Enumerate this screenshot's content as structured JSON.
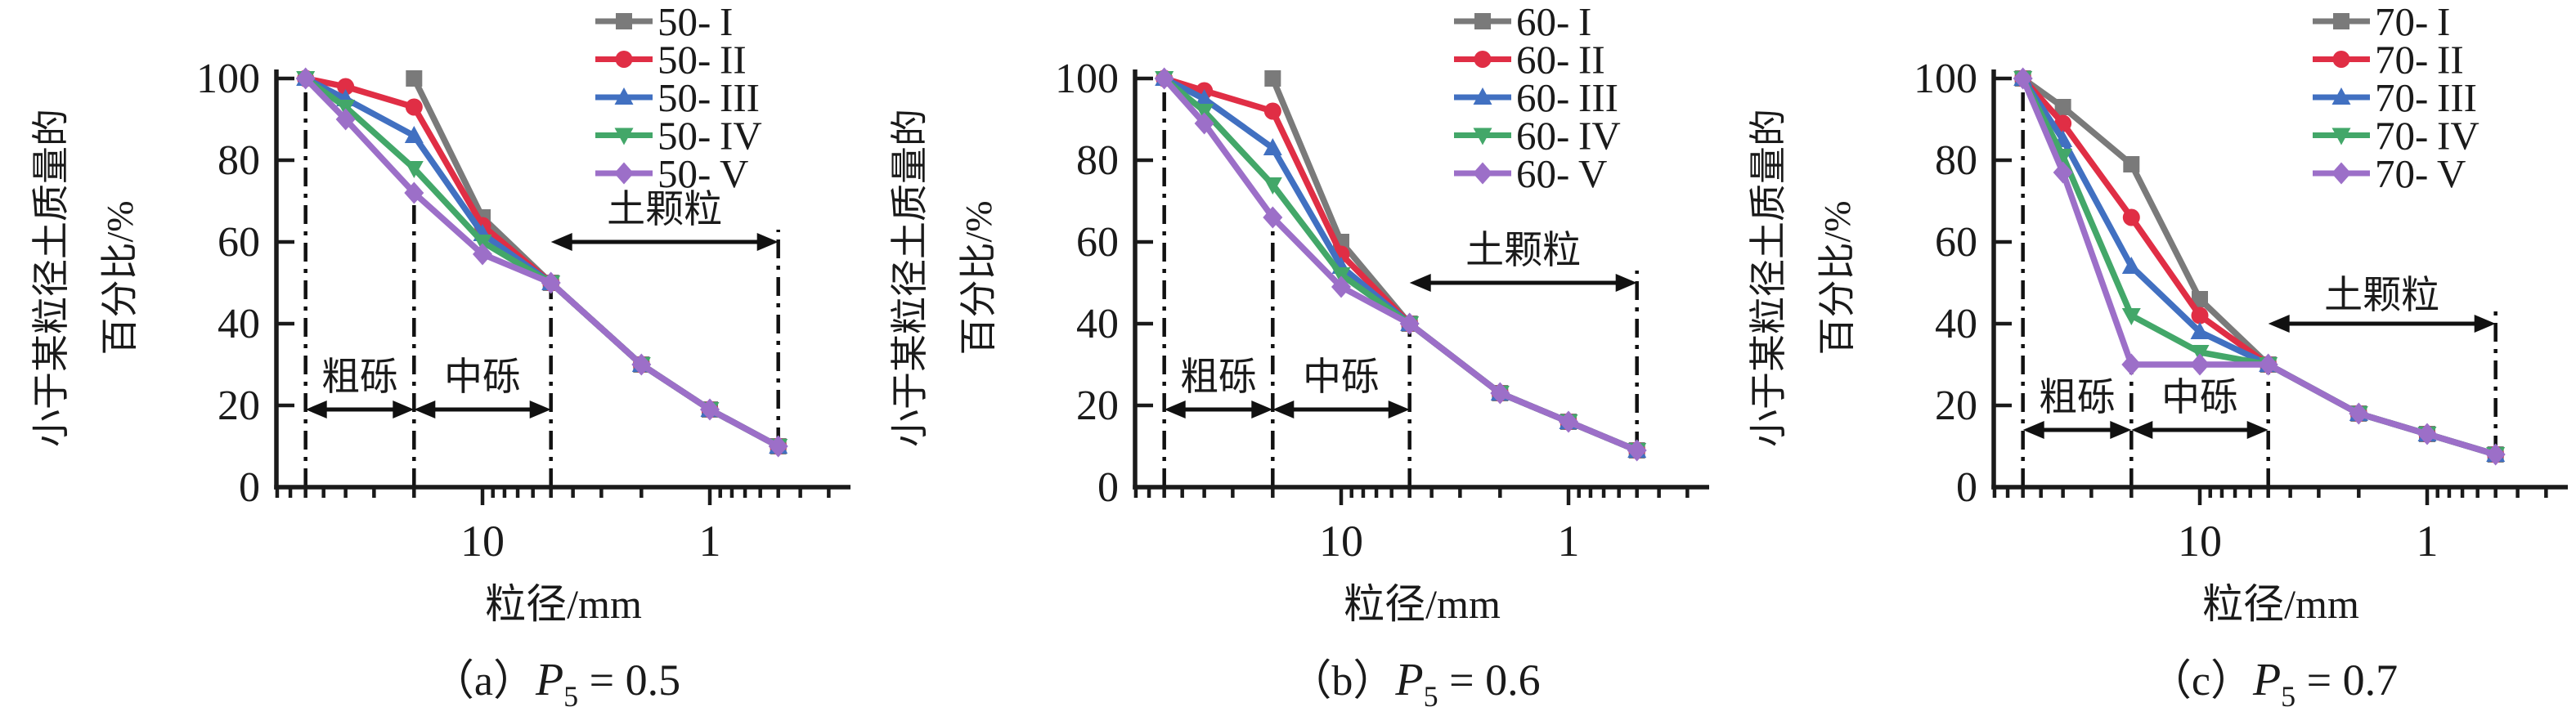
{
  "figure_bg": "#ffffff",
  "axis": {
    "ylabel_line1": "小于某粒径土质量的",
    "ylabel_line2": "百分比/%",
    "xlabel": "粒径/mm",
    "x_scale": "log-reversed",
    "x_tick_labels": [
      "10",
      "1"
    ],
    "x_tick_values": [
      10,
      1
    ],
    "x_minor_ticks": [
      80,
      70,
      60,
      50,
      40,
      30,
      20,
      9,
      8,
      7,
      6,
      5,
      4,
      3,
      2,
      0.9,
      0.8,
      0.7,
      0.6,
      0.5,
      0.4,
      0.3
    ],
    "y_tick_labels": [
      "0",
      "20",
      "40",
      "60",
      "80",
      "100"
    ],
    "y_tick_values": [
      0,
      20,
      40,
      60,
      80,
      100
    ],
    "xlim": [
      81,
      0.23
    ],
    "ylim": [
      0,
      100
    ]
  },
  "colors": {
    "axis": "#1a1a1a",
    "annotation": "#111111",
    "series_I": "#7a7a7a",
    "series_II": "#e02e45",
    "series_III": "#4170c1",
    "series_IV": "#43a769",
    "series_V": "#9c6fc8"
  },
  "chart_data": [
    {
      "type": "line",
      "panel": "a",
      "caption": {
        "index": "（a）",
        "p": "P",
        "sub": "5",
        "value": " = 0.5"
      },
      "xlabel": "粒径/mm",
      "ylabel": "小于某粒径土质量的百分比/%",
      "x_unit": "mm",
      "legend_position": "top-right",
      "series": [
        {
          "name": "50-I",
          "label_prefix": "50-",
          "numeral": "I",
          "color": "#7a7a7a",
          "marker": "square",
          "x": [
            20,
            10,
            5,
            2,
            1,
            0.5
          ],
          "y": [
            100,
            66,
            50,
            30,
            19,
            10
          ]
        },
        {
          "name": "50-II",
          "label_prefix": "50-",
          "numeral": "II",
          "color": "#e02e45",
          "marker": "circle",
          "x": [
            60,
            40,
            20,
            10,
            5,
            2,
            1,
            0.5
          ],
          "y": [
            100,
            98,
            93,
            64,
            50,
            30,
            19,
            10
          ]
        },
        {
          "name": "50-III",
          "label_prefix": "50-",
          "numeral": "III",
          "color": "#4170c1",
          "marker": "triangle-up",
          "x": [
            60,
            40,
            20,
            10,
            5,
            2,
            1,
            0.5
          ],
          "y": [
            100,
            95,
            86,
            62,
            50,
            30,
            19,
            10
          ]
        },
        {
          "name": "50-IV",
          "label_prefix": "50-",
          "numeral": "IV",
          "color": "#43a769",
          "marker": "triangle-down",
          "x": [
            60,
            40,
            20,
            10,
            5,
            2,
            1,
            0.5
          ],
          "y": [
            100,
            93,
            78,
            60,
            50,
            30,
            19,
            10
          ]
        },
        {
          "name": "50-V",
          "label_prefix": "50-",
          "numeral": "V",
          "color": "#9c6fc8",
          "marker": "diamond",
          "x": [
            60,
            40,
            20,
            10,
            5,
            2,
            1,
            0.5
          ],
          "y": [
            100,
            90,
            72,
            57,
            50,
            30,
            19,
            10
          ]
        }
      ],
      "dashlines": [
        {
          "x": 60,
          "y_from": 0,
          "y_to": 100
        },
        {
          "x": 20,
          "y_from": 0,
          "y_to": 72
        },
        {
          "x": 5,
          "y_from": 0,
          "y_to": 50
        },
        {
          "x": 0.5,
          "y_from": 10,
          "y_to": 63
        }
      ],
      "regions": [
        {
          "label": "粗砾",
          "x_from": 60,
          "x_to": 20,
          "arrow_y": 19,
          "label_y": 27
        },
        {
          "label": "中砾",
          "x_from": 20,
          "x_to": 5,
          "arrow_y": 19,
          "label_y": 27
        },
        {
          "label": "土颗粒",
          "x_from": 5,
          "x_to": 0.5,
          "arrow_y": 60,
          "label_y": 68
        }
      ]
    },
    {
      "type": "line",
      "panel": "b",
      "caption": {
        "index": "（b）",
        "p": "P",
        "sub": "5",
        "value": " = 0.6"
      },
      "xlabel": "粒径/mm",
      "ylabel": "小于某粒径土质量的百分比/%",
      "x_unit": "mm",
      "legend_position": "top-right",
      "series": [
        {
          "name": "60-I",
          "label_prefix": "60-",
          "numeral": "I",
          "color": "#7a7a7a",
          "marker": "square",
          "x": [
            20,
            10,
            5,
            2,
            1,
            0.5
          ],
          "y": [
            100,
            60,
            40,
            23,
            16,
            9
          ]
        },
        {
          "name": "60-II",
          "label_prefix": "60-",
          "numeral": "II",
          "color": "#e02e45",
          "marker": "circle",
          "x": [
            60,
            40,
            20,
            10,
            5,
            2,
            1,
            0.5
          ],
          "y": [
            100,
            97,
            92,
            57,
            40,
            23,
            16,
            9
          ]
        },
        {
          "name": "60-III",
          "label_prefix": "60-",
          "numeral": "III",
          "color": "#4170c1",
          "marker": "triangle-up",
          "x": [
            60,
            40,
            20,
            10,
            5,
            2,
            1,
            0.5
          ],
          "y": [
            100,
            95,
            83,
            54,
            40,
            23,
            16,
            9
          ]
        },
        {
          "name": "60-IV",
          "label_prefix": "60-",
          "numeral": "IV",
          "color": "#43a769",
          "marker": "triangle-down",
          "x": [
            60,
            40,
            20,
            10,
            5,
            2,
            1,
            0.5
          ],
          "y": [
            100,
            92,
            74,
            52,
            40,
            23,
            16,
            9
          ]
        },
        {
          "name": "60-V",
          "label_prefix": "60-",
          "numeral": "V",
          "color": "#9c6fc8",
          "marker": "diamond",
          "x": [
            60,
            40,
            20,
            10,
            5,
            2,
            1,
            0.5
          ],
          "y": [
            100,
            89,
            66,
            49,
            40,
            23,
            16,
            9
          ]
        }
      ],
      "dashlines": [
        {
          "x": 60,
          "y_from": 0,
          "y_to": 100
        },
        {
          "x": 20,
          "y_from": 0,
          "y_to": 66
        },
        {
          "x": 5,
          "y_from": 0,
          "y_to": 40
        },
        {
          "x": 0.5,
          "y_from": 9,
          "y_to": 53
        }
      ],
      "regions": [
        {
          "label": "粗砾",
          "x_from": 60,
          "x_to": 20,
          "arrow_y": 19,
          "label_y": 27
        },
        {
          "label": "中砾",
          "x_from": 20,
          "x_to": 5,
          "arrow_y": 19,
          "label_y": 27
        },
        {
          "label": "土颗粒",
          "x_from": 5,
          "x_to": 0.5,
          "arrow_y": 50,
          "label_y": 58
        }
      ]
    },
    {
      "type": "line",
      "panel": "c",
      "caption": {
        "index": "（c）",
        "p": "P",
        "sub": "5",
        "value": " = 0.7"
      },
      "xlabel": "粒径/mm",
      "ylabel": "小于某粒径土质量的百分比/%",
      "x_unit": "mm",
      "legend_position": "top-right",
      "series": [
        {
          "name": "70-I",
          "label_prefix": "70-",
          "numeral": "I",
          "color": "#7a7a7a",
          "marker": "square",
          "x": [
            60,
            40,
            20,
            10,
            5,
            2,
            1,
            0.5
          ],
          "y": [
            100,
            93,
            79,
            46,
            30,
            18,
            13,
            8
          ]
        },
        {
          "name": "70-II",
          "label_prefix": "70-",
          "numeral": "II",
          "color": "#e02e45",
          "marker": "circle",
          "x": [
            60,
            40,
            20,
            10,
            5,
            2,
            1,
            0.5
          ],
          "y": [
            100,
            89,
            66,
            42,
            30,
            18,
            13,
            8
          ]
        },
        {
          "name": "70-III",
          "label_prefix": "70-",
          "numeral": "III",
          "color": "#4170c1",
          "marker": "triangle-up",
          "x": [
            60,
            40,
            20,
            10,
            5,
            2,
            1,
            0.5
          ],
          "y": [
            100,
            85,
            54,
            38,
            30,
            18,
            13,
            8
          ]
        },
        {
          "name": "70-IV",
          "label_prefix": "70-",
          "numeral": "IV",
          "color": "#43a769",
          "marker": "triangle-down",
          "x": [
            60,
            40,
            20,
            10,
            5,
            2,
            1,
            0.5
          ],
          "y": [
            100,
            81,
            42,
            33,
            30,
            18,
            13,
            8
          ]
        },
        {
          "name": "70-V",
          "label_prefix": "70-",
          "numeral": "V",
          "color": "#9c6fc8",
          "marker": "diamond",
          "x": [
            60,
            40,
            20,
            10,
            5,
            2,
            1,
            0.5
          ],
          "y": [
            100,
            77,
            30,
            30,
            30,
            18,
            13,
            8
          ]
        }
      ],
      "dashlines": [
        {
          "x": 60,
          "y_from": 0,
          "y_to": 100
        },
        {
          "x": 20,
          "y_from": 0,
          "y_to": 30
        },
        {
          "x": 5,
          "y_from": 0,
          "y_to": 30
        },
        {
          "x": 0.5,
          "y_from": 8,
          "y_to": 43
        }
      ],
      "regions": [
        {
          "label": "粗砾",
          "x_from": 60,
          "x_to": 20,
          "arrow_y": 14,
          "label_y": 22
        },
        {
          "label": "中砾",
          "x_from": 20,
          "x_to": 5,
          "arrow_y": 14,
          "label_y": 22
        },
        {
          "label": "土颗粒",
          "x_from": 5,
          "x_to": 0.5,
          "arrow_y": 40,
          "label_y": 47
        }
      ]
    }
  ]
}
